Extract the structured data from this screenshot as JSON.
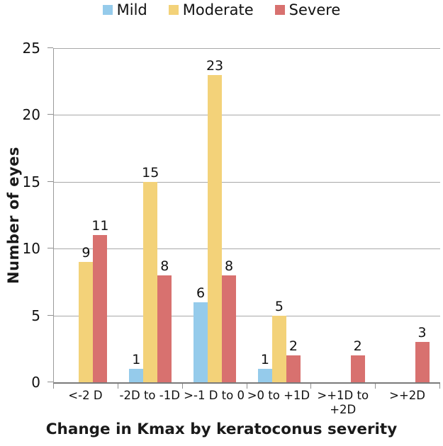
{
  "chart_data": {
    "type": "bar",
    "title": "",
    "xlabel": "Change in Kmax by keratoconus severity",
    "ylabel": "Number of eyes",
    "categories": [
      "<-2 D",
      "-2D to -1D",
      ">-1 D to 0",
      ">0 to +1D",
      ">+1D to +2D",
      ">+2D"
    ],
    "xtick_display_lines": [
      [
        "<-2 D"
      ],
      [
        "-2D to -1D"
      ],
      [
        ">-1 D to 0"
      ],
      [
        ">0 to +1D"
      ],
      [
        ">+1D to",
        "+2D"
      ],
      [
        ">+2D"
      ]
    ],
    "series": [
      {
        "name": "Mild",
        "color": "#95CBEB",
        "values": [
          0,
          1,
          6,
          1,
          0,
          0
        ]
      },
      {
        "name": "Moderate",
        "color": "#F3D279",
        "values": [
          9,
          15,
          23,
          5,
          0,
          0
        ]
      },
      {
        "name": "Severe",
        "color": "#D8716F",
        "values": [
          11,
          8,
          8,
          2,
          2,
          3
        ]
      }
    ],
    "ylim": [
      0,
      25
    ],
    "yticks": [
      0,
      5,
      10,
      15,
      20,
      25
    ],
    "grid": true,
    "legend_position": "top",
    "bar_labels": true
  },
  "style_colors": {
    "gridline": "#a8a8a8",
    "axis": "#8f8f8f",
    "text": "#111111"
  }
}
